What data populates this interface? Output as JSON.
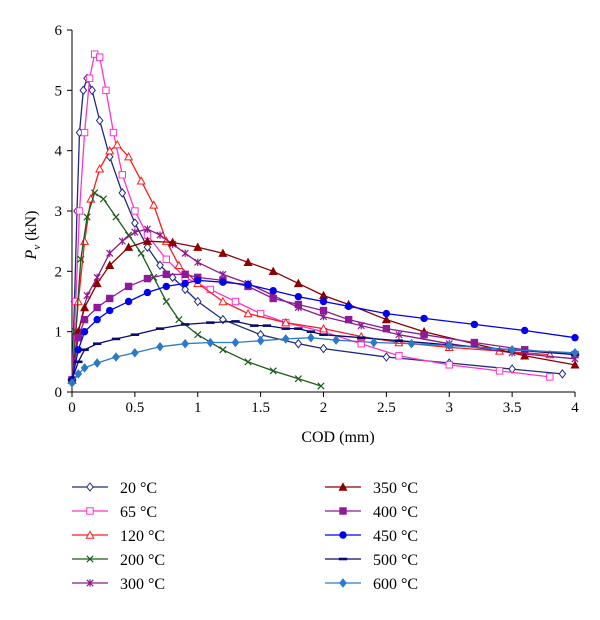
{
  "chart_data": {
    "type": "line",
    "xlabel": "COD (mm)",
    "ylabel_main": "P",
    "ylabel_sub": "v",
    "ylabel_unit": "(kN)",
    "xlim": [
      0,
      4
    ],
    "ylim": [
      0,
      6
    ],
    "xticks": [
      "0",
      "0.5",
      "1",
      "1.5",
      "2",
      "2.5",
      "3",
      "3.5",
      "4"
    ],
    "yticks": [
      "0",
      "1",
      "2",
      "3",
      "4",
      "5",
      "6"
    ],
    "grid": false,
    "legend_position": "bottom",
    "series": [
      {
        "name": "20 °C",
        "color": "#1f2a80",
        "marker": "diamond-open",
        "points": [
          [
            0,
            0.2
          ],
          [
            0.02,
            1.5
          ],
          [
            0.04,
            3.0
          ],
          [
            0.06,
            4.3
          ],
          [
            0.09,
            5.0
          ],
          [
            0.12,
            5.2
          ],
          [
            0.16,
            5.0
          ],
          [
            0.22,
            4.5
          ],
          [
            0.3,
            3.9
          ],
          [
            0.4,
            3.3
          ],
          [
            0.5,
            2.8
          ],
          [
            0.6,
            2.4
          ],
          [
            0.7,
            2.1
          ],
          [
            0.8,
            1.9
          ],
          [
            0.9,
            1.7
          ],
          [
            1.0,
            1.5
          ],
          [
            1.2,
            1.2
          ],
          [
            1.5,
            0.95
          ],
          [
            1.8,
            0.8
          ],
          [
            2.0,
            0.72
          ],
          [
            2.5,
            0.58
          ],
          [
            3.0,
            0.48
          ],
          [
            3.5,
            0.38
          ],
          [
            3.9,
            0.3
          ]
        ]
      },
      {
        "name": "65 °C",
        "color": "#ff33cc",
        "marker": "square-open",
        "points": [
          [
            0,
            0.2
          ],
          [
            0.03,
            1.5
          ],
          [
            0.06,
            3.0
          ],
          [
            0.1,
            4.3
          ],
          [
            0.14,
            5.2
          ],
          [
            0.18,
            5.6
          ],
          [
            0.22,
            5.55
          ],
          [
            0.27,
            5.0
          ],
          [
            0.33,
            4.3
          ],
          [
            0.4,
            3.6
          ],
          [
            0.5,
            3.0
          ],
          [
            0.6,
            2.6
          ],
          [
            0.75,
            2.2
          ],
          [
            0.9,
            1.9
          ],
          [
            1.1,
            1.7
          ],
          [
            1.3,
            1.5
          ],
          [
            1.5,
            1.3
          ],
          [
            1.7,
            1.15
          ],
          [
            2.0,
            1.0
          ],
          [
            2.3,
            0.8
          ],
          [
            2.6,
            0.6
          ],
          [
            3.0,
            0.45
          ],
          [
            3.4,
            0.35
          ],
          [
            3.8,
            0.25
          ]
        ]
      },
      {
        "name": "120 °C",
        "color": "#ff1a1a",
        "marker": "triangle-open",
        "points": [
          [
            0,
            0.2
          ],
          [
            0.05,
            1.5
          ],
          [
            0.1,
            2.5
          ],
          [
            0.15,
            3.2
          ],
          [
            0.22,
            3.7
          ],
          [
            0.3,
            4.0
          ],
          [
            0.36,
            4.1
          ],
          [
            0.45,
            3.9
          ],
          [
            0.55,
            3.5
          ],
          [
            0.65,
            3.1
          ],
          [
            0.75,
            2.5
          ],
          [
            0.85,
            2.1
          ],
          [
            1.0,
            1.8
          ],
          [
            1.2,
            1.5
          ],
          [
            1.4,
            1.3
          ],
          [
            1.7,
            1.15
          ],
          [
            2.0,
            1.05
          ],
          [
            2.3,
            0.92
          ],
          [
            2.6,
            0.82
          ],
          [
            3.0,
            0.74
          ],
          [
            3.4,
            0.68
          ],
          [
            3.8,
            0.62
          ]
        ]
      },
      {
        "name": "200 °C",
        "color": "#1a5c1a",
        "marker": "x",
        "points": [
          [
            0,
            0.2
          ],
          [
            0.03,
            1.0
          ],
          [
            0.07,
            2.2
          ],
          [
            0.12,
            2.9
          ],
          [
            0.18,
            3.3
          ],
          [
            0.25,
            3.2
          ],
          [
            0.35,
            2.9
          ],
          [
            0.45,
            2.6
          ],
          [
            0.55,
            2.3
          ],
          [
            0.65,
            1.9
          ],
          [
            0.75,
            1.5
          ],
          [
            0.85,
            1.2
          ],
          [
            1.0,
            0.95
          ],
          [
            1.2,
            0.7
          ],
          [
            1.4,
            0.5
          ],
          [
            1.6,
            0.35
          ],
          [
            1.8,
            0.22
          ],
          [
            1.98,
            0.1
          ]
        ]
      },
      {
        "name": "300 °C",
        "color": "#8c1a8c",
        "marker": "star",
        "points": [
          [
            0,
            0.2
          ],
          [
            0.05,
            1.0
          ],
          [
            0.12,
            1.6
          ],
          [
            0.2,
            1.9
          ],
          [
            0.3,
            2.3
          ],
          [
            0.4,
            2.5
          ],
          [
            0.5,
            2.65
          ],
          [
            0.6,
            2.7
          ],
          [
            0.7,
            2.6
          ],
          [
            0.8,
            2.45
          ],
          [
            0.9,
            2.3
          ],
          [
            1.0,
            2.15
          ],
          [
            1.2,
            1.95
          ],
          [
            1.4,
            1.8
          ],
          [
            1.6,
            1.6
          ],
          [
            1.8,
            1.4
          ],
          [
            2.0,
            1.25
          ],
          [
            2.3,
            1.1
          ],
          [
            2.6,
            0.95
          ],
          [
            3.0,
            0.8
          ],
          [
            3.5,
            0.65
          ],
          [
            4.0,
            0.55
          ]
        ]
      },
      {
        "name": "350 °C",
        "color": "#8b0000",
        "marker": "triangle",
        "points": [
          [
            0,
            0.2
          ],
          [
            0.05,
            1.0
          ],
          [
            0.1,
            1.4
          ],
          [
            0.2,
            1.8
          ],
          [
            0.3,
            2.1
          ],
          [
            0.45,
            2.4
          ],
          [
            0.6,
            2.5
          ],
          [
            0.8,
            2.48
          ],
          [
            1.0,
            2.4
          ],
          [
            1.2,
            2.3
          ],
          [
            1.4,
            2.15
          ],
          [
            1.6,
            2.0
          ],
          [
            1.8,
            1.8
          ],
          [
            2.0,
            1.6
          ],
          [
            2.2,
            1.45
          ],
          [
            2.5,
            1.2
          ],
          [
            2.8,
            1.0
          ],
          [
            3.2,
            0.8
          ],
          [
            3.6,
            0.6
          ],
          [
            4.0,
            0.45
          ]
        ]
      },
      {
        "name": "400 °C",
        "color": "#8c1a99",
        "marker": "square",
        "points": [
          [
            0,
            0.2
          ],
          [
            0.05,
            0.9
          ],
          [
            0.1,
            1.2
          ],
          [
            0.2,
            1.4
          ],
          [
            0.3,
            1.55
          ],
          [
            0.45,
            1.75
          ],
          [
            0.6,
            1.88
          ],
          [
            0.75,
            1.95
          ],
          [
            0.9,
            1.95
          ],
          [
            1.0,
            1.9
          ],
          [
            1.2,
            1.85
          ],
          [
            1.4,
            1.75
          ],
          [
            1.6,
            1.55
          ],
          [
            1.8,
            1.45
          ],
          [
            2.0,
            1.35
          ],
          [
            2.2,
            1.2
          ],
          [
            2.5,
            1.05
          ],
          [
            2.8,
            0.95
          ],
          [
            3.2,
            0.82
          ],
          [
            3.6,
            0.7
          ],
          [
            4.0,
            0.62
          ]
        ]
      },
      {
        "name": "450 °C",
        "color": "#0000ee",
        "marker": "circle",
        "points": [
          [
            0,
            0.2
          ],
          [
            0.05,
            0.7
          ],
          [
            0.1,
            1.0
          ],
          [
            0.2,
            1.2
          ],
          [
            0.3,
            1.35
          ],
          [
            0.45,
            1.5
          ],
          [
            0.6,
            1.65
          ],
          [
            0.75,
            1.75
          ],
          [
            0.9,
            1.8
          ],
          [
            1.0,
            1.85
          ],
          [
            1.2,
            1.82
          ],
          [
            1.4,
            1.78
          ],
          [
            1.6,
            1.68
          ],
          [
            1.8,
            1.58
          ],
          [
            2.0,
            1.5
          ],
          [
            2.2,
            1.42
          ],
          [
            2.5,
            1.3
          ],
          [
            2.8,
            1.22
          ],
          [
            3.2,
            1.12
          ],
          [
            3.6,
            1.02
          ],
          [
            4.0,
            0.9
          ]
        ]
      },
      {
        "name": "500 °C",
        "color": "#0a0a6e",
        "marker": "dash",
        "points": [
          [
            0,
            0.2
          ],
          [
            0.05,
            0.5
          ],
          [
            0.1,
            0.7
          ],
          [
            0.2,
            0.8
          ],
          [
            0.35,
            0.88
          ],
          [
            0.5,
            0.95
          ],
          [
            0.7,
            1.05
          ],
          [
            0.9,
            1.12
          ],
          [
            1.1,
            1.15
          ],
          [
            1.3,
            1.17
          ],
          [
            1.45,
            1.1
          ],
          [
            1.55,
            1.1
          ],
          [
            1.7,
            1.05
          ],
          [
            1.8,
            1.05
          ],
          [
            1.9,
            1.0
          ],
          [
            2.0,
            0.95
          ],
          [
            2.3,
            0.9
          ],
          [
            2.6,
            0.85
          ],
          [
            3.0,
            0.78
          ],
          [
            3.5,
            0.7
          ],
          [
            4.0,
            0.62
          ]
        ]
      },
      {
        "name": "600 °C",
        "color": "#2a7ac8",
        "marker": "diamond",
        "points": [
          [
            0,
            0.15
          ],
          [
            0.05,
            0.3
          ],
          [
            0.1,
            0.4
          ],
          [
            0.2,
            0.48
          ],
          [
            0.35,
            0.58
          ],
          [
            0.5,
            0.65
          ],
          [
            0.7,
            0.75
          ],
          [
            0.9,
            0.8
          ],
          [
            1.1,
            0.82
          ],
          [
            1.3,
            0.82
          ],
          [
            1.5,
            0.85
          ],
          [
            1.7,
            0.88
          ],
          [
            1.9,
            0.9
          ],
          [
            2.1,
            0.86
          ],
          [
            2.4,
            0.82
          ],
          [
            2.7,
            0.8
          ],
          [
            3.0,
            0.77
          ],
          [
            3.5,
            0.7
          ],
          [
            4.0,
            0.65
          ]
        ]
      }
    ]
  }
}
